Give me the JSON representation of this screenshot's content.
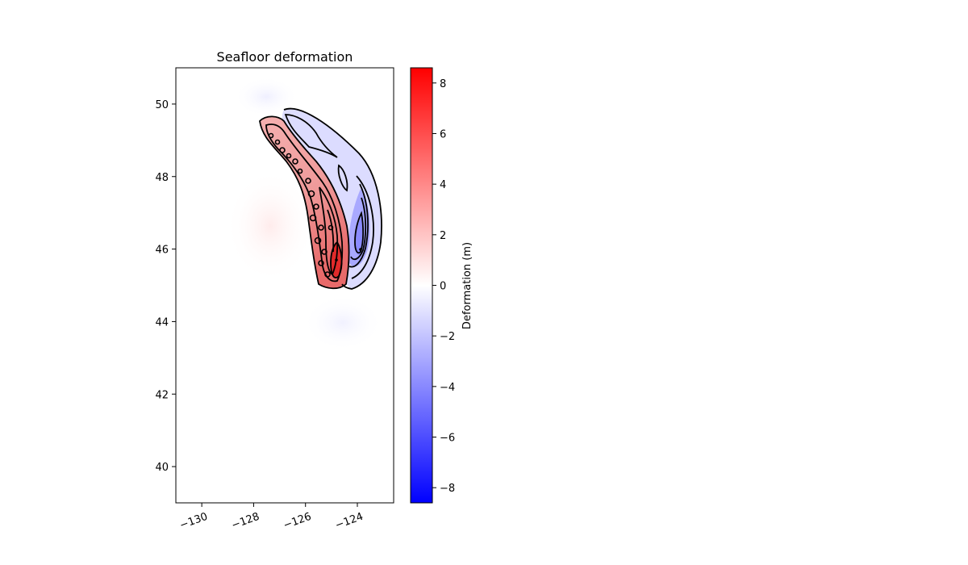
{
  "chart_data": {
    "type": "heatmap",
    "title": "Seafloor deformation",
    "x_ticks": [
      "−130",
      "−128",
      "−126",
      "−124"
    ],
    "x_tick_values": [
      -130,
      -128,
      -126,
      -124
    ],
    "y_ticks": [
      "40",
      "42",
      "44",
      "46",
      "48",
      "50"
    ],
    "y_tick_values": [
      40,
      42,
      44,
      46,
      48,
      50
    ],
    "xlim": [
      -131,
      -122.6
    ],
    "ylim": [
      39,
      51
    ],
    "colorbar": {
      "label": "Deformation (m)",
      "ticks": [
        "−8",
        "−6",
        "−4",
        "−2",
        "0",
        "2",
        "4",
        "6",
        "8"
      ],
      "tick_values": [
        -8,
        -6,
        -4,
        -2,
        0,
        2,
        4,
        6,
        8
      ],
      "range": [
        -8.6,
        8.6
      ],
      "colormap": [
        "#0000ff",
        "#ffffff",
        "#ff0000"
      ]
    },
    "uplift_peak": {
      "lon": -124.8,
      "lat": 45.6,
      "value_m": 8.6
    },
    "subsidence_peak": {
      "lon": -123.8,
      "lat": 46.0,
      "value_m": -5.5
    },
    "contour_color": "#000000",
    "grid": false
  }
}
